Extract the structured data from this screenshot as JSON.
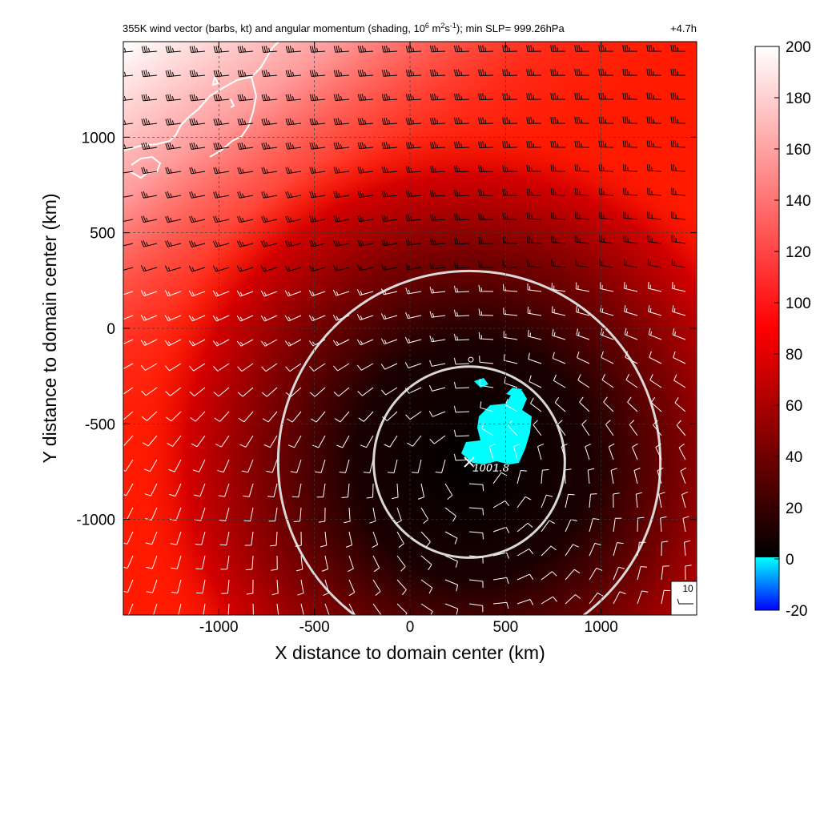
{
  "chart_data": {
    "type": "heatmap",
    "title_main": "355K wind vector (barbs, kt) and angular momentum (shading, 10",
    "title_exp1": "6",
    "title_mid1": " m",
    "title_exp2": "2",
    "title_mid2": "s",
    "title_exp3": "-1",
    "title_end": "); min SLP= 999.26hPa",
    "time_label": "+4.7h",
    "xlabel": "X distance to domain center (km)",
    "ylabel": "Y distance to domain center (km)",
    "xlim": [
      -1500,
      1500
    ],
    "ylim": [
      -1500,
      1500
    ],
    "x_ticks": [
      -1000,
      -500,
      0,
      500,
      1000
    ],
    "x_tick_labels": [
      "-1000",
      "-500",
      "0",
      "500",
      "1000"
    ],
    "y_ticks": [
      -1000,
      -500,
      0,
      500,
      1000
    ],
    "y_tick_labels": [
      "-1000",
      "-500",
      "0",
      "500",
      "1000"
    ],
    "grid": true,
    "colorbar": {
      "min": -20,
      "max": 200,
      "ticks": [
        -20,
        0,
        20,
        40,
        60,
        80,
        100,
        120,
        140,
        160,
        180,
        200
      ],
      "tick_labels": [
        "-20",
        "0",
        "20",
        "40",
        "60",
        "80",
        "100",
        "120",
        "140",
        "160",
        "180",
        "200"
      ],
      "colors": {
        "neg_low": "#0000ff",
        "neg_high": "#00ffff",
        "zero": "#000000",
        "mid": "#ff0000",
        "high": "#ffffff"
      }
    },
    "storm_center": {
      "x": 310,
      "y": -700,
      "label": "1001.8"
    },
    "radius_rings_km": [
      500,
      1000
    ],
    "barb_reference": {
      "label": "10"
    },
    "field_colors": {
      "background_red": "#ff1a00",
      "core": "#000000",
      "negative_patch": "#00ffff",
      "coastline": "#ffffff",
      "rings": "#d8d8d8"
    }
  }
}
